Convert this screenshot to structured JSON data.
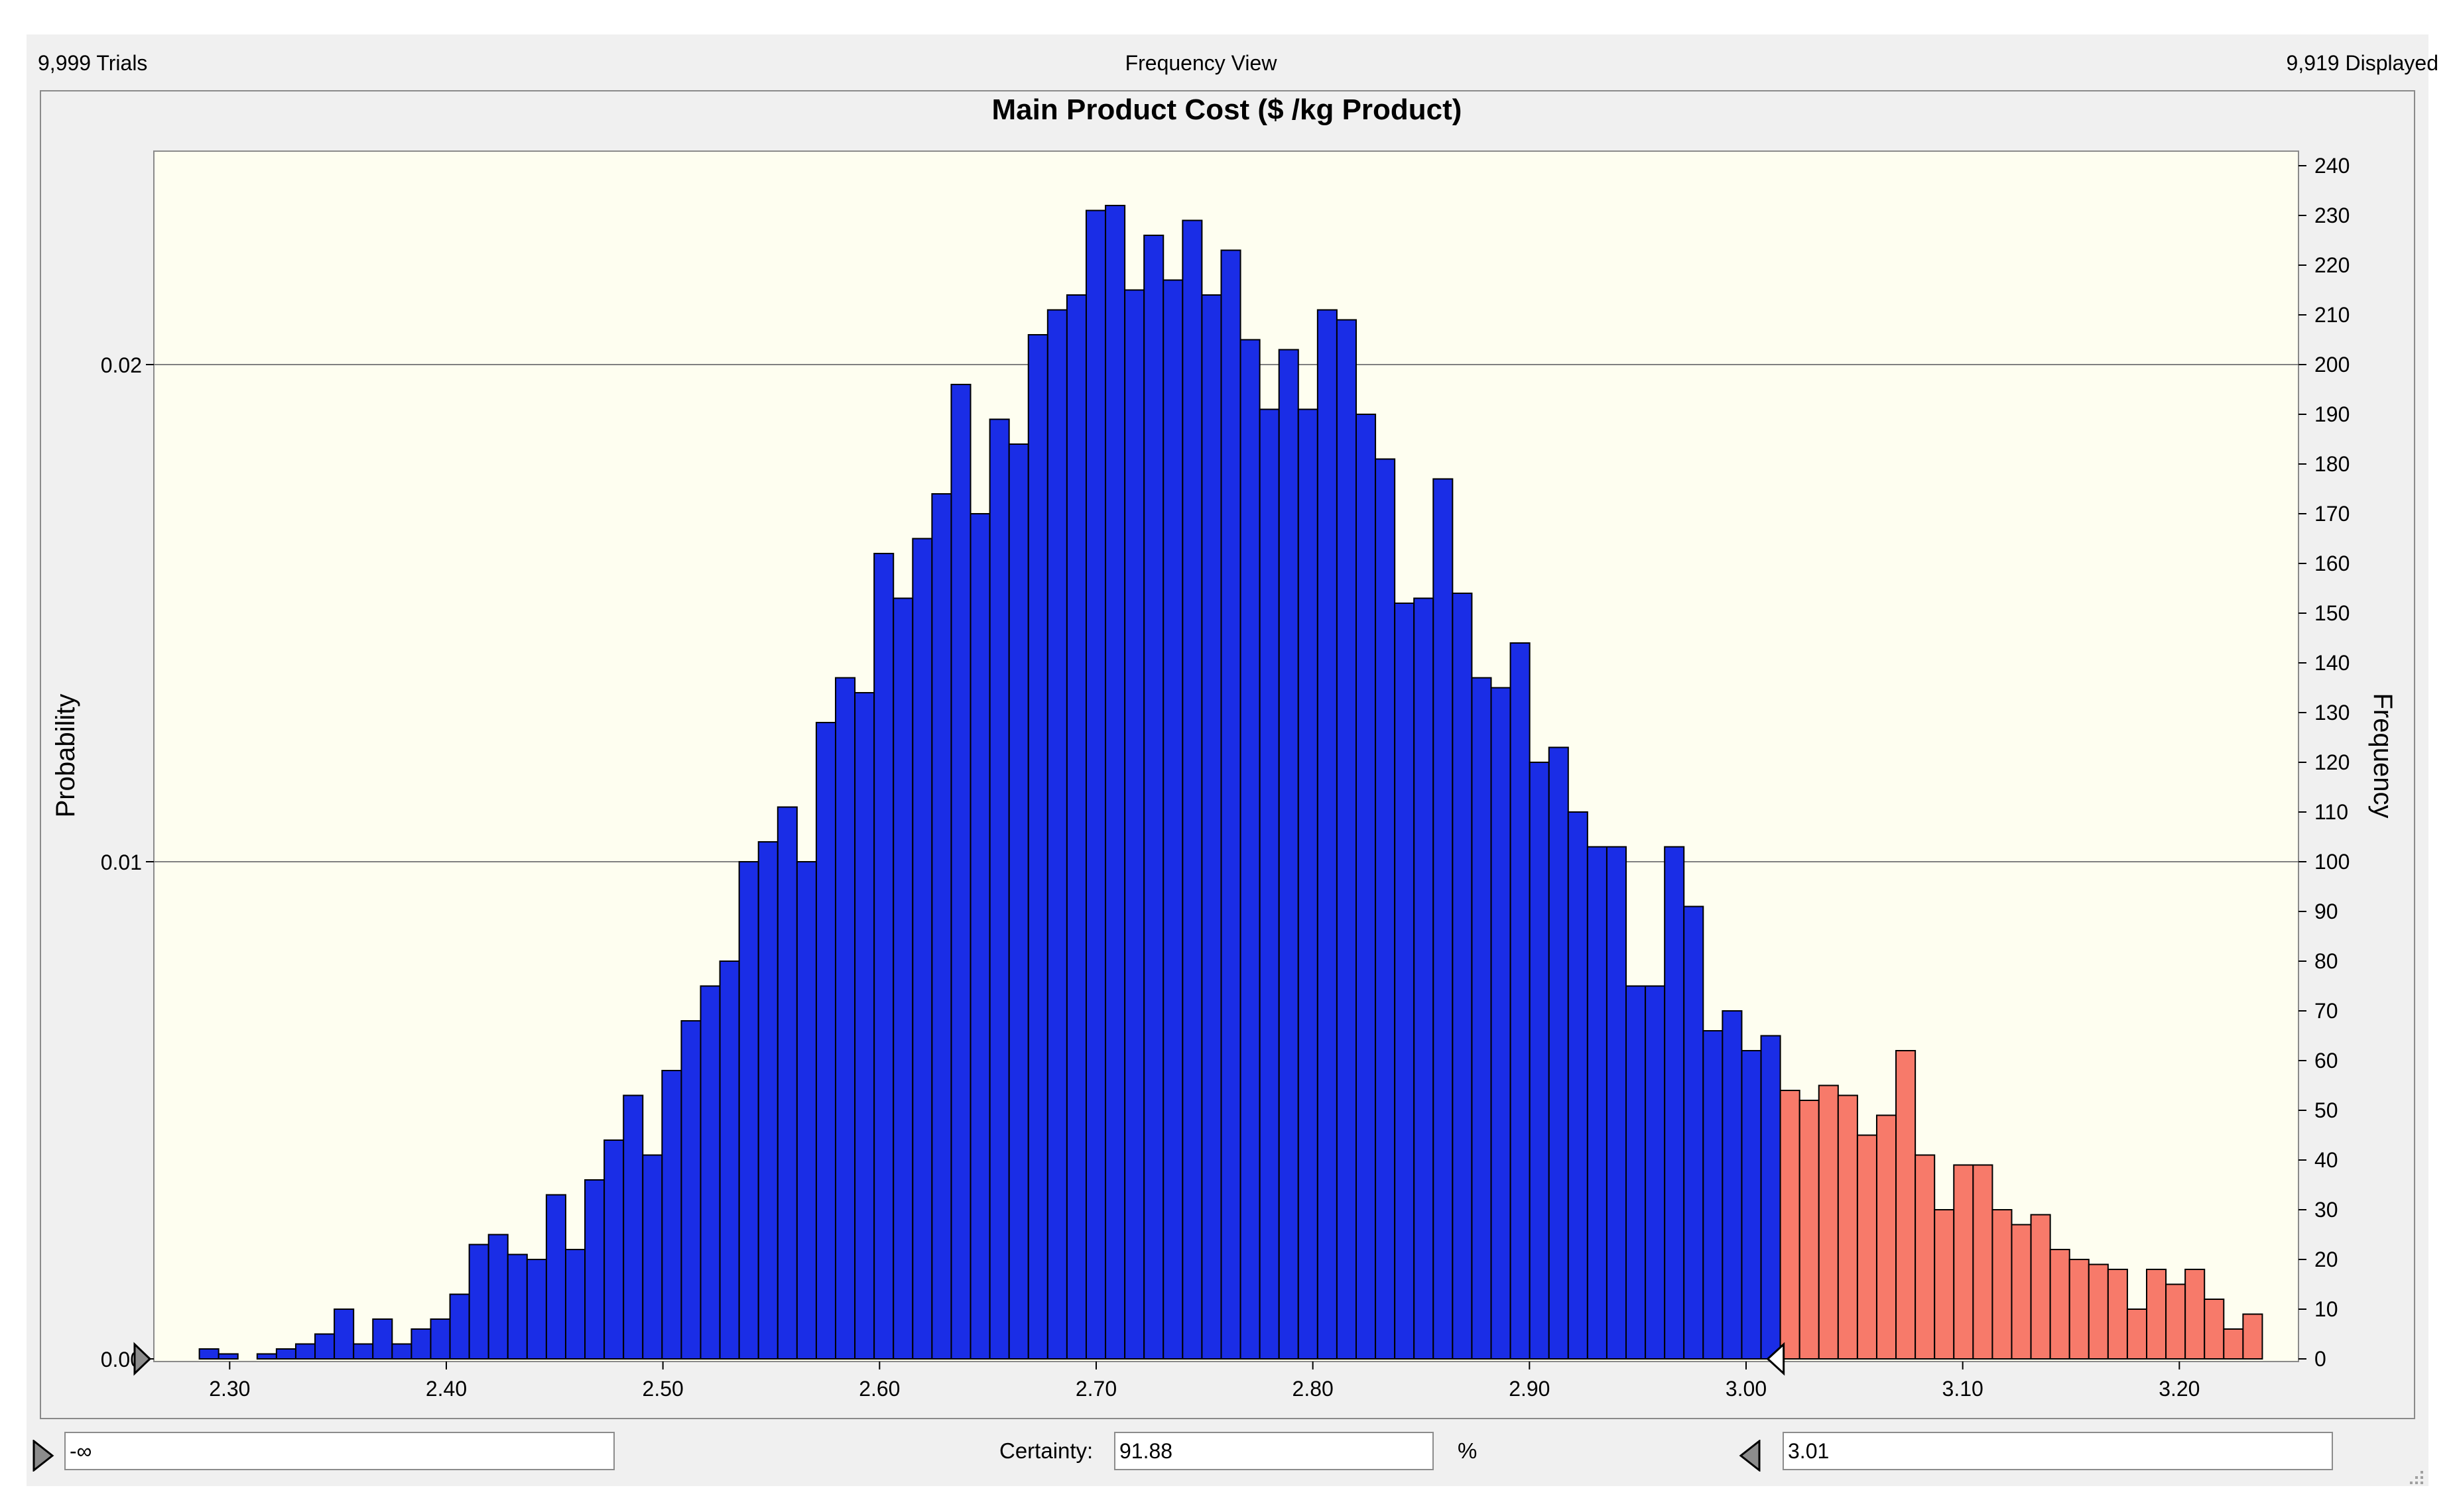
{
  "header": {
    "trials": "9,999 Trials",
    "view": "Frequency View",
    "displayed": "9,919 Displayed"
  },
  "controls": {
    "lower_value": "-∞",
    "certainty_label": "Certainty:",
    "certainty_value": "91.88",
    "percent_label": "%",
    "upper_value": "3.01"
  },
  "colors": {
    "plot_background": "#fefef0",
    "bar_in_range": "#1a2de6",
    "bar_out_range": "#f77a6a",
    "bar_edge": "#000000",
    "gridline": "#808080"
  },
  "icons": {
    "lower_grabber": "right-triangle-icon",
    "upper_grabber": "left-triangle-icon",
    "resize_grip": "resize-grip-icon"
  },
  "chart_data": {
    "type": "bar",
    "title": "Main Product Cost ($ /kg Product)",
    "ylabel_left": "Probability",
    "ylabel_right": "Frequency",
    "xlim": [
      2.265,
      3.255
    ],
    "ylim_frequency": [
      0,
      240
    ],
    "ylim_probability": [
      0,
      0.024
    ],
    "x_ticks": [
      2.3,
      2.4,
      2.5,
      2.6,
      2.7,
      2.8,
      2.9,
      3.0,
      3.1,
      3.2
    ],
    "x_tick_labels": [
      "2.30",
      "2.40",
      "2.50",
      "2.60",
      "2.70",
      "2.80",
      "2.90",
      "3.00",
      "3.10",
      "3.20"
    ],
    "y_left_ticks": [
      0,
      0.01,
      0.02
    ],
    "y_left_tick_labels": [
      "0.00",
      "0.01",
      "0.02"
    ],
    "y_right_ticks": [
      0,
      10,
      20,
      30,
      40,
      50,
      60,
      70,
      80,
      90,
      100,
      110,
      120,
      130,
      140,
      150,
      160,
      170,
      180,
      190,
      200,
      210,
      220,
      230,
      240
    ],
    "gridlines_probability": [
      0.01,
      0.02
    ],
    "bin_start": 2.286,
    "bin_width": 0.0089,
    "frequencies": [
      2,
      1,
      0,
      1,
      2,
      3,
      5,
      10,
      3,
      8,
      3,
      6,
      8,
      13,
      23,
      25,
      21,
      20,
      33,
      22,
      36,
      44,
      53,
      41,
      58,
      68,
      75,
      80,
      100,
      104,
      111,
      100,
      128,
      137,
      134,
      162,
      153,
      165,
      174,
      196,
      170,
      189,
      184,
      206,
      211,
      214,
      231,
      232,
      215,
      226,
      217,
      229,
      214,
      223,
      205,
      191,
      203,
      191,
      211,
      209,
      190,
      181,
      152,
      153,
      177,
      154,
      137,
      135,
      144,
      120,
      123,
      110,
      103,
      103,
      75,
      75,
      103,
      91,
      66,
      70,
      62,
      65,
      54,
      52,
      55,
      53,
      45,
      49,
      62,
      41,
      30,
      39,
      39,
      30,
      27,
      29,
      22,
      20,
      19,
      18,
      10,
      18,
      15,
      18,
      12,
      6,
      9
    ],
    "certainty_lower": "-∞",
    "certainty_upper": 3.01,
    "certainty_percent": 91.88
  }
}
